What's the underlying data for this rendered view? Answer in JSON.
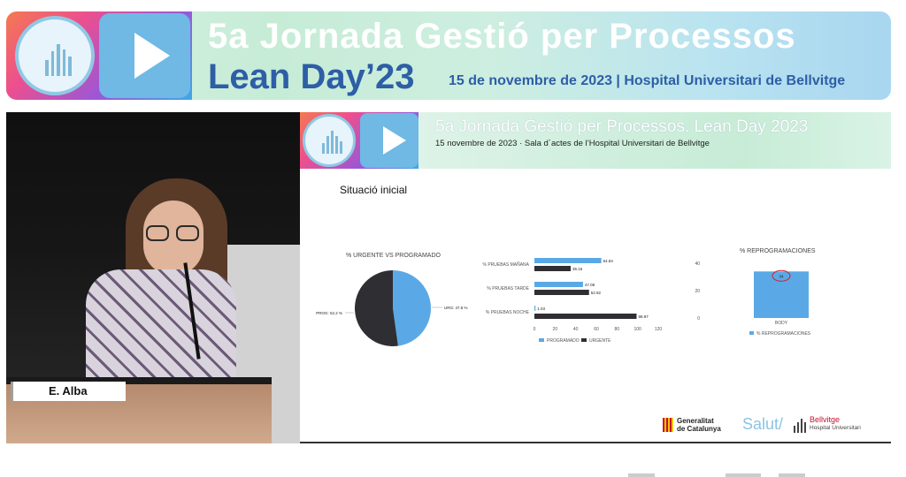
{
  "banner": {
    "title_line1": "5a Jornada Gestió per Processos",
    "title_line2": "Lean Day’23",
    "date_location": "15 de novembre de 2023  |  Hospital Universitari de Bellvitge",
    "logo_icon": "hospital-building-icon",
    "play_icon": "play-icon"
  },
  "video": {
    "speaker_name": "E. Alba"
  },
  "slide": {
    "header_title": "5a Jornada Gestió per Processos. Lean Day 2023",
    "header_subtitle": "15 novembre de 2023 · Sala d´actes de l’Hospital Universitari de Bellvitge",
    "section_title": "Situació inicial",
    "footer": {
      "generalitat": "Generalitat",
      "catalunya": "de Catalunya",
      "salut": "Salut/",
      "bellvitge": "Bellvitge",
      "hospital": "Hospital Universitari"
    }
  },
  "chart_data": [
    {
      "type": "pie",
      "title": "% URGENTE VS PROGRAMADO",
      "labels": [
        "URG: 47.8 %",
        "PROG: 52.2 %"
      ],
      "values": [
        47.8,
        52.2
      ],
      "colors": [
        "#5aa9e6",
        "#2f2f33"
      ]
    },
    {
      "type": "bar",
      "orientation": "horizontal",
      "categories": [
        "% PRUEBAS MAÑANA",
        "% PRUEBAS TARDE",
        "% PRUEBAS NOCHE"
      ],
      "series": [
        {
          "name": "PROGRAMADO",
          "values": [
            64.84,
            47.08,
            1.03
          ],
          "value_labels": [
            "64.84",
            "47.08",
            "1.03"
          ],
          "color": "#5aa9e6"
        },
        {
          "name": "URGENTE",
          "values": [
            35.15,
            52.92,
            98.97
          ],
          "value_labels": [
            "35.15",
            "52.92",
            "98.97"
          ],
          "color": "#2f2f33"
        }
      ],
      "xlim": [
        0,
        120
      ],
      "xticks": [
        "0",
        "20",
        "40",
        "60",
        "80",
        "100",
        "120"
      ],
      "legend": "bottom"
    },
    {
      "type": "bar",
      "title": "% REPROGRAMACIONES",
      "categories": [
        "BODY"
      ],
      "values": [
        34
      ],
      "value_labels": [
        "34"
      ],
      "ylim": [
        0,
        40
      ],
      "yticks": [
        "40",
        "20",
        "0"
      ],
      "legend_label": "% REPROGRAMACIONES",
      "color": "#5aa9e6",
      "highlight": "red-circle"
    }
  ]
}
